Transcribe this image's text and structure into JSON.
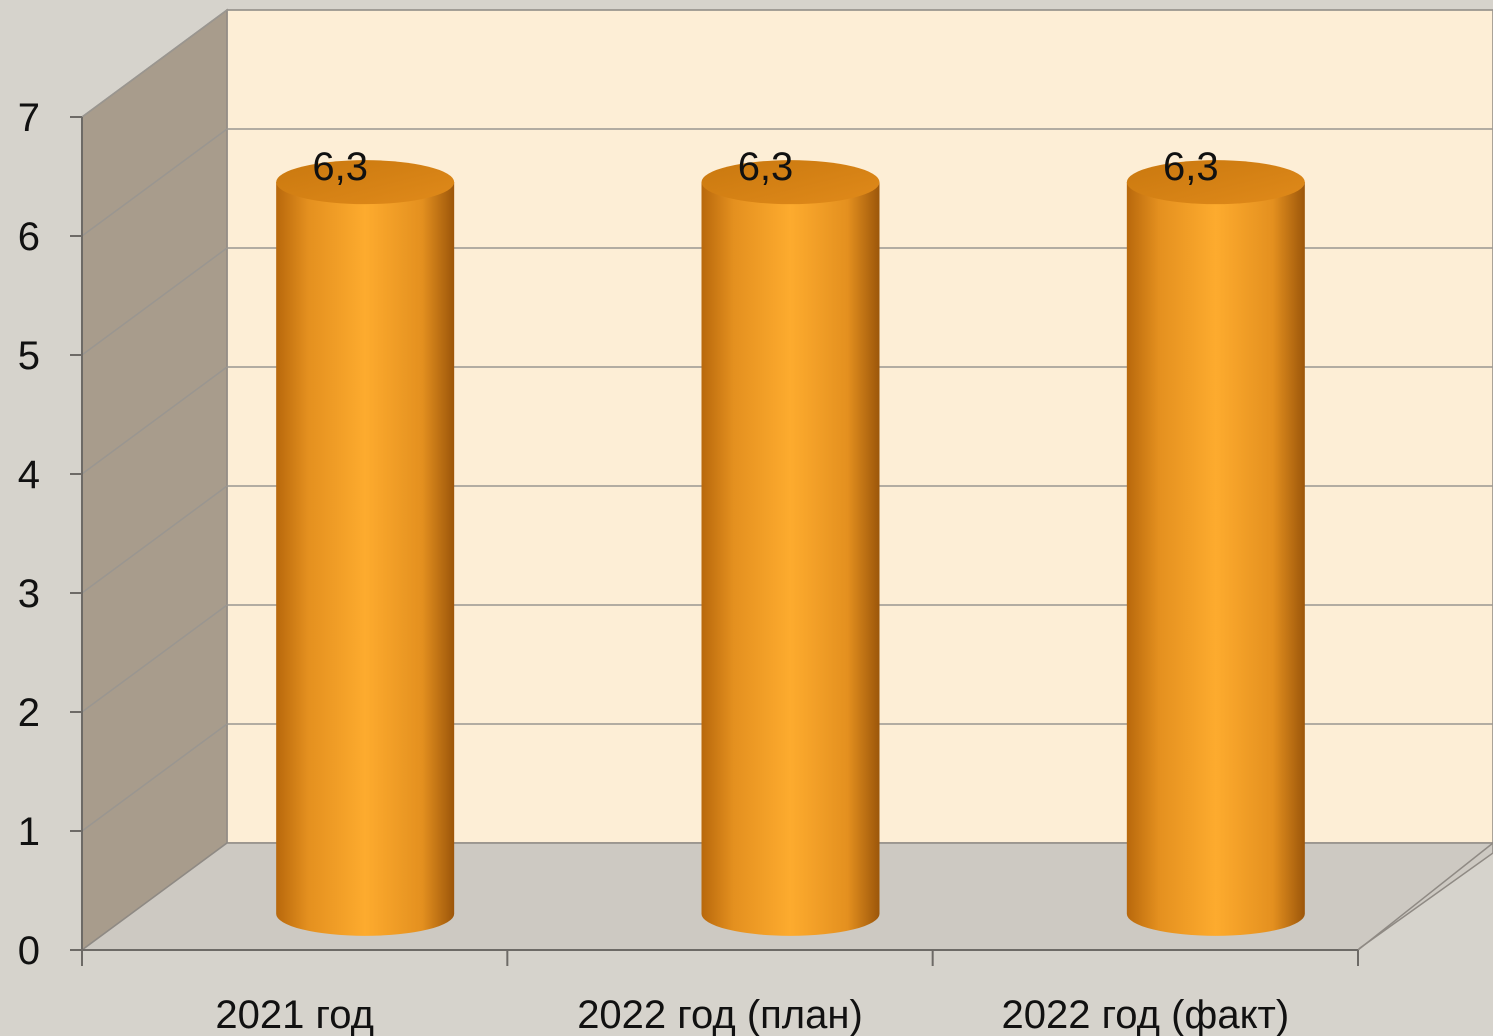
{
  "chart_data": {
    "type": "bar",
    "style": "3d-cylinder",
    "categories": [
      "2021 год",
      "2022 год (план)",
      "2022 год (факт)"
    ],
    "series": [
      {
        "values": [
          6.3,
          6.3,
          6.3
        ],
        "data_labels": [
          "6,3",
          "6,3",
          "6,3"
        ]
      }
    ],
    "ylim": [
      0,
      7
    ],
    "yticks": [
      0,
      1,
      2,
      3,
      4,
      5,
      6,
      7
    ],
    "grid": true,
    "legend": "none",
    "colors": {
      "bar": "#f7a12a",
      "bar_dark": "#b8680c",
      "back_wall": "#fdeed6",
      "side_wall": "#a89c8c",
      "floor": "#cdc9c2",
      "background": "#d6d3cc",
      "grid": "#9a9690"
    }
  }
}
